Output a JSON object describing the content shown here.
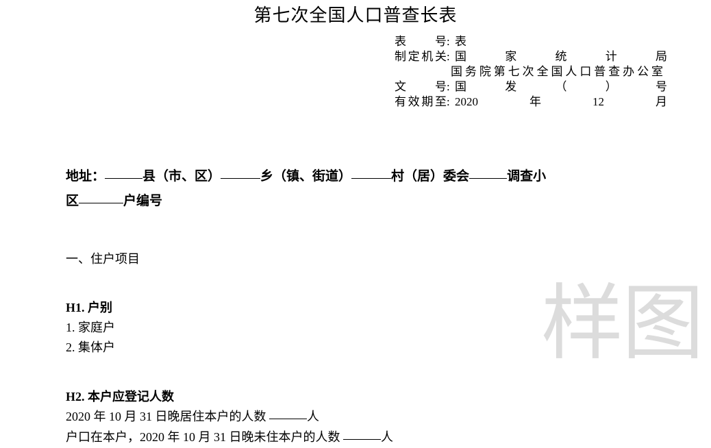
{
  "title": "第七次全国人口普查长表",
  "meta": {
    "form_no_label": "表　号",
    "form_no_value": "表",
    "agency_label": "制定机关",
    "agency_value_line1": "国家统计局",
    "agency_value_line2": "国务院第七次全国人口普查办公室",
    "doc_no_label": "文　号",
    "doc_no_value": "国发（）号",
    "valid_until_label": "有效期至",
    "valid_until_value": "2020年12月"
  },
  "address": {
    "addr_prefix": "地址：",
    "county": "县（市、区）",
    "town": "乡（镇、街道）",
    "village": "村（居）委会",
    "survey_area": "调查小",
    "area_line2_prefix": "区",
    "household_no": "户编号"
  },
  "section1_heading": "一、住户项目",
  "h1": {
    "title": "H1. 户别",
    "opt1": "1. 家庭户",
    "opt2": "2. 集体户"
  },
  "h2": {
    "title": "H2. 本户应登记人数",
    "line1_pre": "2020 年 10 月 31 日晚居住本户的人数 ",
    "line1_suf": "人",
    "line2_pre": "户口在本户，2020 年 10 月 31 日晚未住本户的人数 ",
    "line2_suf": "人"
  },
  "watermark": "样图"
}
